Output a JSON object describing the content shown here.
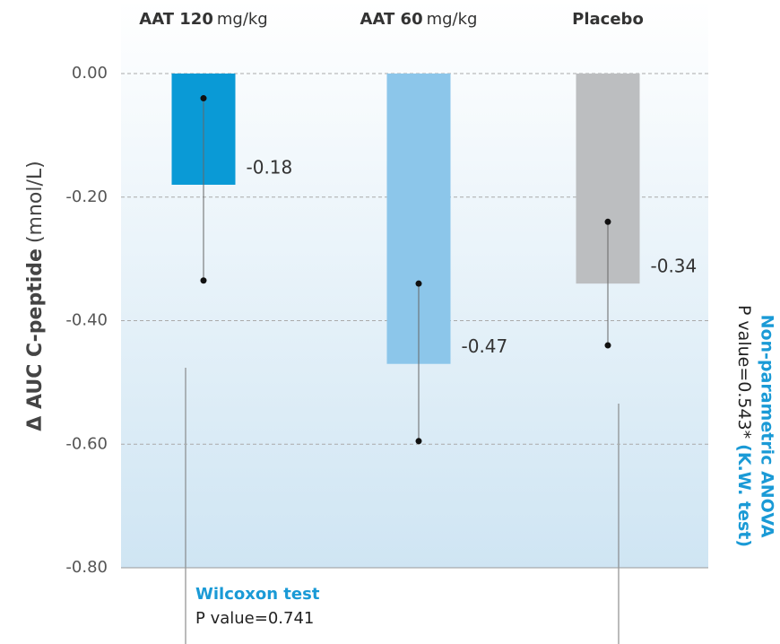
{
  "chart_data": {
    "type": "bar",
    "categories": [
      "AAT 120",
      "AAT 60",
      "Placebo"
    ],
    "category_units": [
      "mg/kg",
      "mg/kg",
      null
    ],
    "ylabel": "Δ AUC  C-peptide",
    "ylabel_unit": "(mnol/L)",
    "values": [
      -0.18,
      -0.47,
      -0.34
    ],
    "colors": [
      "#0a9ad6",
      "#8cc6ea",
      "#bcbec0"
    ],
    "ranges": [
      [
        -0.04,
        -0.335
      ],
      [
        -0.34,
        -0.595
      ],
      [
        -0.24,
        -0.44
      ]
    ],
    "ylim": [
      -0.8,
      0.0
    ],
    "yticks": [
      {
        "value": 0.0,
        "label": "0.00"
      },
      {
        "value": -0.2,
        "label": "-0.20"
      },
      {
        "value": -0.4,
        "label": "-0.40"
      },
      {
        "value": -0.6,
        "label": "-0.60"
      },
      {
        "value": -0.8,
        "label": "-0.80"
      }
    ],
    "grid": true,
    "annotations": {
      "wilcoxon_title": "Wilcoxon test",
      "wilcoxon_p": "P value=0.741",
      "anova_title": "Non-parametric ANOVA",
      "anova_p": "P value=0.543*",
      "anova_test": "(K.W. test)"
    }
  }
}
